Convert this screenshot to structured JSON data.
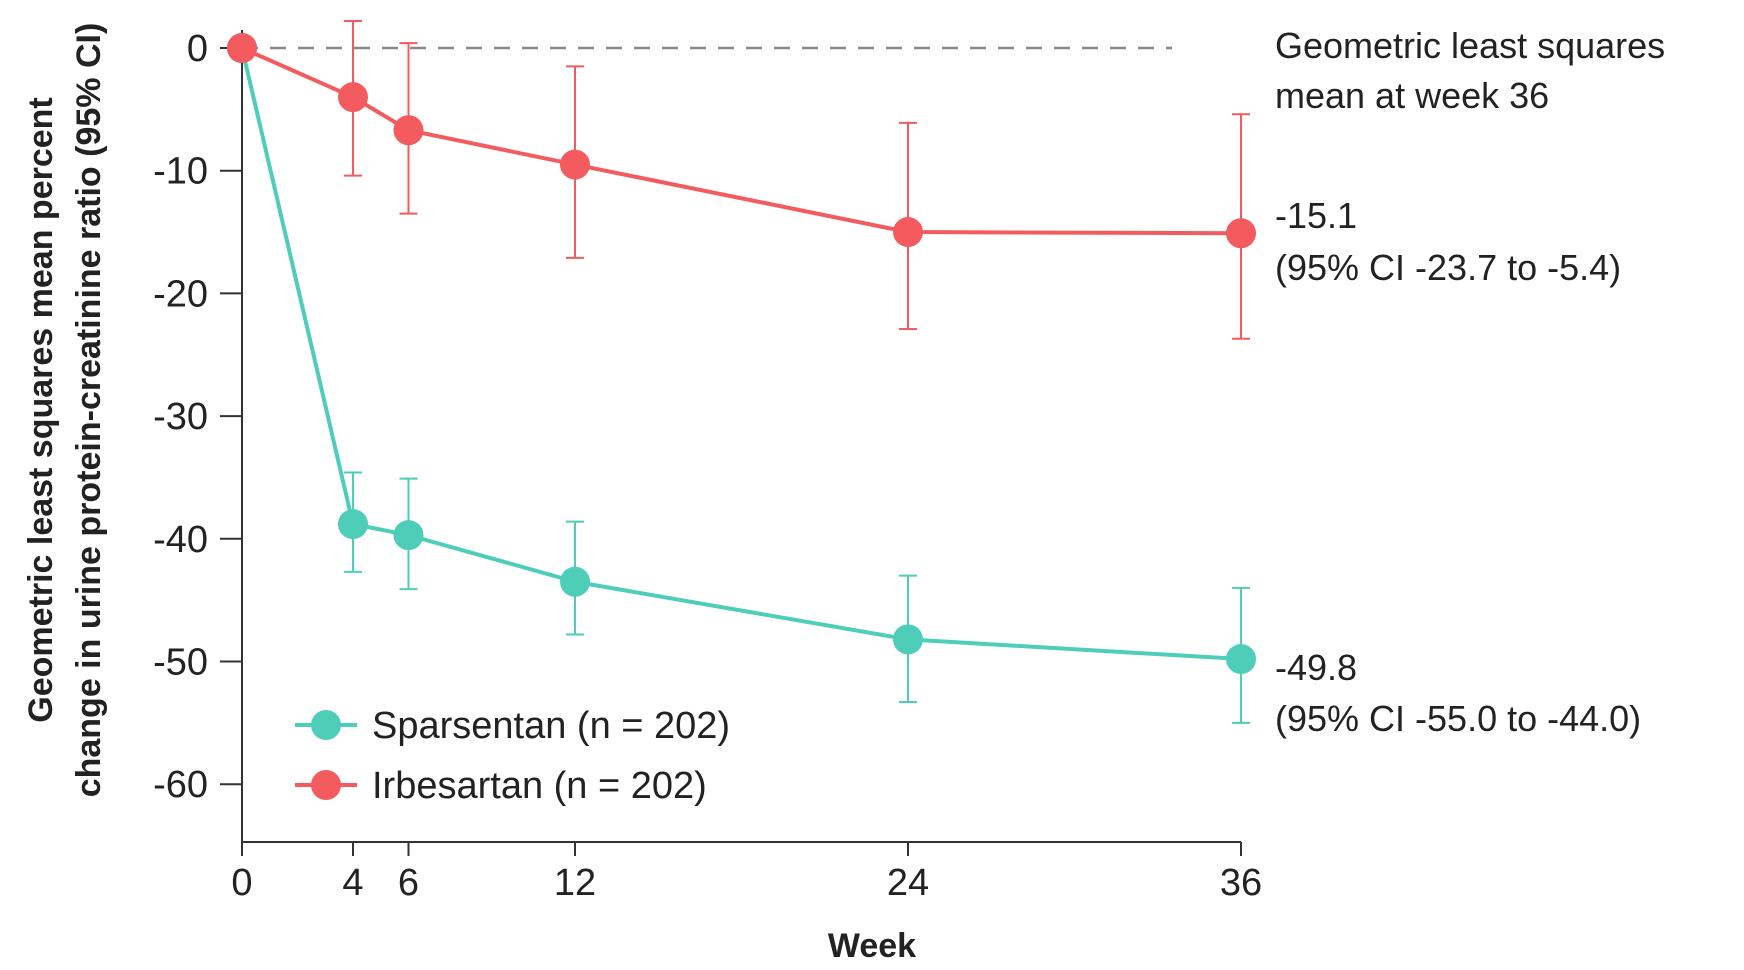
{
  "chart_data": {
    "type": "line",
    "xlabel": "Week",
    "ylabel_lines": [
      "Geometric least squares mean percent",
      "change in urine protein-creatinine ratio (95% CI)"
    ],
    "xlim": [
      0,
      36
    ],
    "ylim": [
      -65,
      2
    ],
    "x_ticks": [
      0,
      4,
      6,
      12,
      24,
      36
    ],
    "y_ticks": [
      0,
      -10,
      -20,
      -30,
      -40,
      -50,
      -60
    ],
    "reference_line": {
      "y": 0,
      "style": "dashed",
      "color": "#888888"
    },
    "series": [
      {
        "name": "Sparsentan (n = 202)",
        "color": "#4ECDB8",
        "x": [
          0,
          4,
          6,
          12,
          24,
          36
        ],
        "y": [
          0,
          -38.8,
          -39.7,
          -43.5,
          -48.2,
          -49.8
        ],
        "ci_low": [
          0,
          -42.7,
          -44.1,
          -47.8,
          -53.3,
          -55.0
        ],
        "ci_high": [
          0,
          -34.6,
          -35.1,
          -38.6,
          -43.0,
          -44.0
        ]
      },
      {
        "name": "Irbesartan (n = 202)",
        "color": "#F45B5F",
        "x": [
          0,
          4,
          6,
          12,
          24,
          36
        ],
        "y": [
          0,
          -4.0,
          -6.7,
          -9.5,
          -15.0,
          -15.1
        ],
        "ci_low": [
          0,
          -10.4,
          -13.5,
          -17.1,
          -22.9,
          -23.7
        ],
        "ci_high": [
          0,
          2.2,
          0.4,
          -1.5,
          -6.1,
          -5.4
        ]
      }
    ],
    "annotations": {
      "header_lines": [
        "Geometric least squares",
        "mean at week 36"
      ],
      "irbesartan_value": "-15.1",
      "irbesartan_ci": "(95% CI -23.7 to -5.4)",
      "sparsentan_value": "-49.8",
      "sparsentan_ci": "(95% CI -55.0 to -44.0)"
    },
    "legend": {
      "position": "bottom-left"
    }
  }
}
